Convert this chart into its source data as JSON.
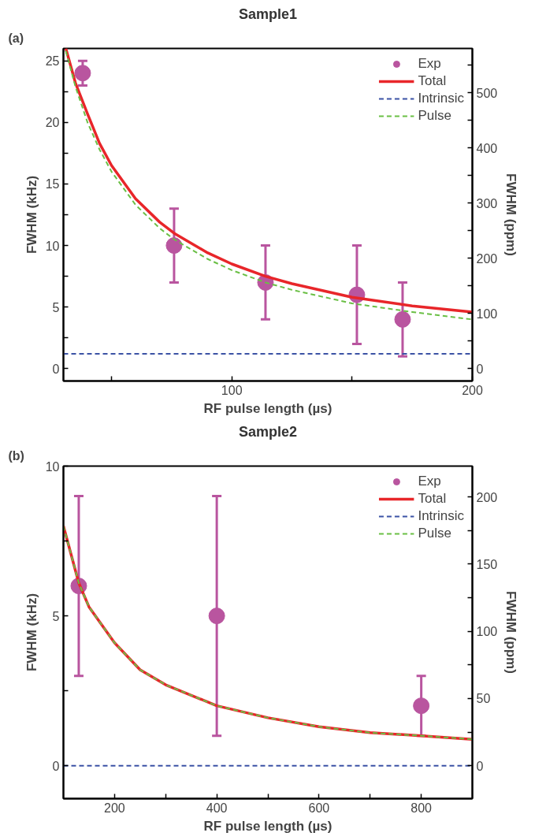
{
  "chart_data": [
    {
      "type": "line",
      "title": "Sample1",
      "annotations": [
        "(a)"
      ],
      "xlabel": "RF pulse length (µs)",
      "ylabel": "FWHM (kHz)",
      "y2label": "FWHM (ppm)",
      "xlim": [
        30,
        200
      ],
      "xticks": [
        {
          "value": 50,
          "label": null
        },
        100,
        {
          "value": 150,
          "label": null
        },
        200
      ],
      "ylim": [
        -1,
        26
      ],
      "yticks": [
        0,
        {
          "value": 2.5,
          "label": null
        },
        5,
        {
          "value": 7.5,
          "label": null
        },
        10,
        {
          "value": 12.5,
          "label": null
        },
        15,
        {
          "value": 17.5,
          "label": null
        },
        20,
        {
          "value": 22.5,
          "label": null
        },
        25
      ],
      "y2lim": [
        -22.3,
        580
      ],
      "y2ticks": [
        0,
        {
          "value": 50,
          "label": null
        },
        100,
        {
          "value": 150,
          "label": null
        },
        200,
        {
          "value": 250,
          "label": null
        },
        300,
        {
          "value": 350,
          "label": null
        },
        400,
        {
          "value": 450,
          "label": null
        },
        500,
        {
          "value": 550,
          "label": null
        }
      ],
      "legend": "top right",
      "series": [
        {
          "name": "Exp",
          "type": "scatter",
          "marker": "circle",
          "color": "#b9559f",
          "x": [
            38,
            76,
            114,
            152,
            171
          ],
          "values": [
            24,
            10,
            7,
            6,
            4
          ],
          "errors": [
            1,
            3,
            3,
            4,
            3
          ]
        },
        {
          "name": "Total",
          "line_style": "solid",
          "color": "#e8262a",
          "x": [
            31,
            35,
            40,
            45,
            50,
            60,
            70,
            76,
            90,
            100,
            114,
            125,
            150,
            175,
            200
          ],
          "values": [
            26,
            23.2,
            20.7,
            18.3,
            16.5,
            13.8,
            11.9,
            11,
            9.4,
            8.5,
            7.5,
            6.9,
            5.8,
            5.1,
            4.6
          ]
        },
        {
          "name": "Intrinsic",
          "line_style": "dashed",
          "color": "#3b52a5",
          "x": [
            30,
            200
          ],
          "values": [
            1.2,
            1.2
          ]
        },
        {
          "name": "Pulse",
          "line_style": "dashed",
          "color": "#6abf45",
          "x": [
            31,
            35,
            40,
            45,
            50,
            60,
            70,
            76,
            90,
            100,
            114,
            125,
            150,
            175,
            200
          ],
          "values": [
            25.8,
            22.9,
            20,
            17.8,
            16,
            13.3,
            11.4,
            10.5,
            8.9,
            8.0,
            7.0,
            6.4,
            5.3,
            4.6,
            4.0
          ]
        }
      ]
    },
    {
      "type": "line",
      "title": "Sample2",
      "annotations": [
        "(b)"
      ],
      "xlabel": "RF pulse length (µs)",
      "ylabel": "FWHM (kHz)",
      "y2label": "FWHM (ppm)",
      "xlim": [
        100,
        900
      ],
      "xticks": [
        200,
        {
          "value": 300,
          "label": null
        },
        400,
        {
          "value": 500,
          "label": null
        },
        600,
        {
          "value": 700,
          "label": null
        },
        800
      ],
      "ylim": [
        -1.1,
        10
      ],
      "yticks": [
        0,
        {
          "value": 2.5,
          "label": null
        },
        5,
        {
          "value": 7.5,
          "label": null
        },
        10
      ],
      "y2lim": [
        -24.5,
        223
      ],
      "y2ticks": [
        0,
        {
          "value": 25,
          "label": null
        },
        50,
        {
          "value": 75,
          "label": null
        },
        100,
        {
          "value": 125,
          "label": null
        },
        150,
        {
          "value": 175,
          "label": null
        },
        200
      ],
      "legend": "top right",
      "series": [
        {
          "name": "Exp",
          "type": "scatter",
          "marker": "circle",
          "color": "#b9559f",
          "x": [
            130,
            400,
            800
          ],
          "values": [
            6,
            5,
            2
          ],
          "errors": [
            3,
            4,
            1
          ]
        },
        {
          "name": "Total",
          "line_style": "solid",
          "color": "#e8262a",
          "x": [
            100,
            130,
            150,
            200,
            250,
            300,
            400,
            500,
            600,
            700,
            800,
            900
          ],
          "values": [
            8,
            6.1,
            5.3,
            4.1,
            3.2,
            2.7,
            2.0,
            1.6,
            1.3,
            1.1,
            1.0,
            0.88
          ]
        },
        {
          "name": "Intrinsic",
          "line_style": "dashed",
          "color": "#3b52a5",
          "x": [
            100,
            900
          ],
          "values": [
            0,
            0
          ]
        },
        {
          "name": "Pulse",
          "line_style": "dashed",
          "color": "#6abf45",
          "x": [
            100,
            130,
            150,
            200,
            250,
            300,
            400,
            500,
            600,
            700,
            800,
            900
          ],
          "values": [
            8,
            6.1,
            5.3,
            4.1,
            3.2,
            2.7,
            2.0,
            1.6,
            1.3,
            1.1,
            1.0,
            0.88
          ]
        }
      ]
    }
  ]
}
